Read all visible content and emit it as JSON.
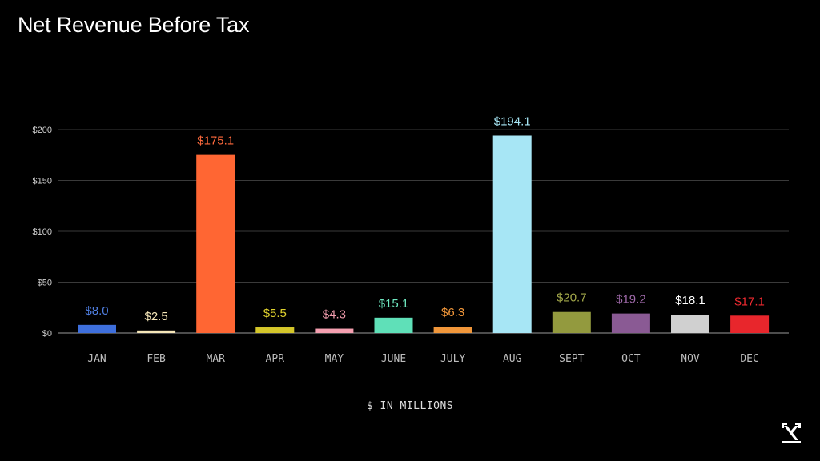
{
  "chart_data": {
    "type": "bar",
    "title": "Net Revenue Before Tax",
    "xlabel": "$ IN MILLIONS",
    "ylabel": "",
    "ylim": [
      0,
      200
    ],
    "yticks": [
      {
        "value": 0,
        "label": "$0"
      },
      {
        "value": 50,
        "label": "$50"
      },
      {
        "value": 100,
        "label": "$100"
      },
      {
        "value": 150,
        "label": "$150"
      },
      {
        "value": 200,
        "label": "$200"
      }
    ],
    "grid": true,
    "categories": [
      "JAN",
      "FEB",
      "MAR",
      "APR",
      "MAY",
      "JUNE",
      "JULY",
      "AUG",
      "SEPT",
      "OCT",
      "NOV",
      "DEC"
    ],
    "values": [
      8.0,
      2.5,
      175.1,
      5.5,
      4.3,
      15.1,
      6.3,
      194.1,
      20.7,
      19.2,
      18.1,
      17.1
    ],
    "data_labels": [
      "$8.0",
      "$2.5",
      "$175.1",
      "$5.5",
      "$4.3",
      "$15.1",
      "$6.3",
      "$194.1",
      "$20.7",
      "$19.2",
      "$18.1",
      "$17.1"
    ],
    "colors": [
      "#3e6fdc",
      "#f5e6b8",
      "#ff6633",
      "#d4c62a",
      "#f59fb0",
      "#5fe0b8",
      "#f0963a",
      "#a7e6f5",
      "#939a3e",
      "#8a5a94",
      "#d0d0d0",
      "#e8262c"
    ],
    "label_colors": [
      "#4f7ee0",
      "#f5e6b8",
      "#ff6a3d",
      "#e0d22e",
      "#f59fb0",
      "#6ee8c0",
      "#f0963a",
      "#a7e6f5",
      "#a3a84a",
      "#a06aab",
      "#ffffff",
      "#f02a30"
    ]
  },
  "brand": {
    "logo_icon": "brand-logo-icon"
  }
}
